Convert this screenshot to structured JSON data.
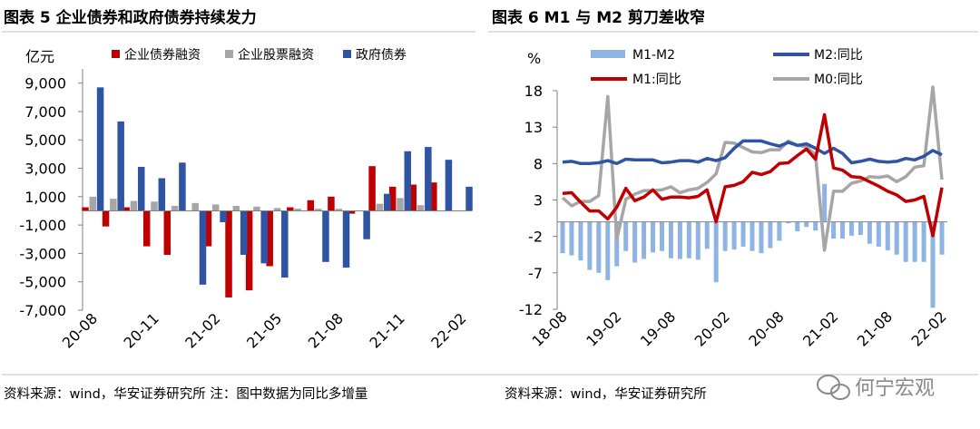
{
  "colors": {
    "red": "#c00000",
    "gray": "#a6a6a6",
    "blue": "#2f54a3",
    "lightblue": "#8eb4e3",
    "divider": "#bfbfbf",
    "watermark": "#8a8a8a"
  },
  "chart_data": [
    {
      "type": "bar",
      "title": "图表 5 企业债券和政府债券持续发力",
      "ylabel": "亿元",
      "ylim": [
        -7000,
        10000
      ],
      "yticks": [
        9000,
        7000,
        5000,
        3000,
        1000,
        -1000,
        -3000,
        -5000,
        -7000
      ],
      "ytick_labels": [
        "9,000",
        "7,000",
        "5,000",
        "3,000",
        "1,000",
        "-1,000",
        "-3,000",
        "-5,000",
        "-7,000"
      ],
      "categories": [
        "20-08",
        "20-09",
        "20-10",
        "20-11",
        "20-12",
        "21-01",
        "21-02",
        "21-03",
        "21-04",
        "21-05",
        "21-06",
        "21-07",
        "21-08",
        "21-09",
        "21-10",
        "21-11",
        "21-12",
        "22-01",
        "22-02"
      ],
      "xtick_labels": [
        "20-08",
        "20-11",
        "21-02",
        "21-05",
        "21-08",
        "21-11",
        "22-02"
      ],
      "series": [
        {
          "name": "企业债券融资",
          "color": "#c00000",
          "values": [
            250,
            -1100,
            250,
            -2500,
            -3100,
            0,
            -2500,
            -6100,
            -5600,
            -3900,
            250,
            750,
            1000,
            -200,
            3150,
            1700,
            1850,
            2000,
            0
          ]
        },
        {
          "name": "企业股票融资",
          "color": "#a6a6a6",
          "values": [
            1000,
            850,
            700,
            650,
            350,
            550,
            450,
            350,
            300,
            200,
            150,
            150,
            150,
            0,
            500,
            900,
            400,
            0,
            0
          ]
        },
        {
          "name": "政府债券",
          "color": "#2f54a3",
          "values": [
            8700,
            6300,
            3100,
            2300,
            3400,
            -5200,
            -800,
            -3100,
            -3700,
            -4700,
            0,
            -3600,
            -4000,
            -2000,
            1200,
            4200,
            4500,
            3600,
            1700
          ]
        }
      ]
    },
    {
      "type": "line",
      "title": "图表 6 M1 与 M2 剪刀差收窄",
      "ylabel": "%",
      "ylim": [
        -12,
        18
      ],
      "yticks": [
        18,
        13,
        8,
        3,
        -2,
        -7,
        -12
      ],
      "x": [
        "18-08",
        "18-09",
        "18-10",
        "18-11",
        "18-12",
        "19-01",
        "19-02",
        "19-03",
        "19-04",
        "19-05",
        "19-06",
        "19-07",
        "19-08",
        "19-09",
        "19-10",
        "19-11",
        "19-12",
        "20-01",
        "20-02",
        "20-03",
        "20-04",
        "20-05",
        "20-06",
        "20-07",
        "20-08",
        "20-09",
        "20-10",
        "20-11",
        "20-12",
        "21-01",
        "21-02",
        "21-03",
        "21-04",
        "21-05",
        "21-06",
        "21-07",
        "21-08",
        "21-09",
        "21-10",
        "21-11",
        "21-12",
        "22-01",
        "22-02"
      ],
      "xtick_labels": [
        "18-08",
        "19-02",
        "19-08",
        "20-02",
        "20-08",
        "21-02",
        "21-08",
        "22-02"
      ],
      "series": [
        {
          "name": "M1-M2",
          "type": "bar",
          "color": "#8eb4e3",
          "values": [
            -4.3,
            -4.6,
            -5.3,
            -6.6,
            -7.0,
            -8.0,
            -6.1,
            -4.0,
            -5.6,
            -5.1,
            -4.2,
            -4.0,
            -5.0,
            -5.1,
            -5.0,
            -5.2,
            -3.7,
            -8.3,
            -4.0,
            -3.8,
            -3.4,
            -4.0,
            -4.3,
            -3.6,
            -2.6,
            -0.2,
            -1.3,
            -0.7,
            -1.2,
            5.2,
            -2.3,
            -2.3,
            -1.9,
            -1.8,
            -3.0,
            -3.4,
            -3.9,
            -4.5,
            -5.5,
            -5.5,
            -5.5,
            -11.8,
            -4.5
          ]
        },
        {
          "name": "M2:同比",
          "type": "line",
          "color": "#2f54a3",
          "values": [
            8.2,
            8.3,
            8.0,
            8.0,
            8.1,
            8.4,
            8.0,
            8.6,
            8.5,
            8.5,
            8.5,
            8.1,
            8.2,
            8.4,
            8.4,
            8.2,
            8.7,
            8.4,
            8.8,
            10.1,
            11.1,
            11.1,
            11.1,
            10.7,
            10.4,
            10.9,
            10.5,
            10.7,
            10.1,
            9.4,
            10.1,
            9.4,
            8.1,
            8.3,
            8.6,
            8.3,
            8.2,
            8.3,
            8.7,
            8.5,
            9.0,
            9.8,
            9.2
          ]
        },
        {
          "name": "M1:同比",
          "type": "line",
          "color": "#c00000",
          "values": [
            3.9,
            4.0,
            2.7,
            1.5,
            1.5,
            0.4,
            2.0,
            4.6,
            2.9,
            3.4,
            4.4,
            3.1,
            3.4,
            3.4,
            3.3,
            3.5,
            4.4,
            0.0,
            4.8,
            5.0,
            5.5,
            6.8,
            6.5,
            6.9,
            8.0,
            8.1,
            9.1,
            10.0,
            8.6,
            14.7,
            7.4,
            7.1,
            6.2,
            6.1,
            5.5,
            4.9,
            4.2,
            3.7,
            2.8,
            3.0,
            3.5,
            -1.9,
            4.7
          ]
        },
        {
          "name": "M0:同比",
          "type": "line",
          "color": "#a6a6a6",
          "values": [
            3.3,
            2.2,
            2.8,
            2.8,
            3.6,
            17.2,
            -2.4,
            3.1,
            3.8,
            4.3,
            4.3,
            4.4,
            4.8,
            4.0,
            4.4,
            4.6,
            5.4,
            6.6,
            10.9,
            10.8,
            10.2,
            9.6,
            9.5,
            9.9,
            9.9,
            11.1,
            10.5,
            10.3,
            9.2,
            -3.9,
            4.2,
            4.2,
            5.3,
            5.6,
            6.2,
            6.1,
            6.3,
            5.5,
            6.2,
            7.5,
            7.7,
            18.5,
            5.8
          ]
        }
      ]
    }
  ],
  "footer": {
    "left_source": "资料来源：wind，华安证券研究所 注：图中数据为同比多增量",
    "right_source": "资料来源：wind，华安证券研究所"
  },
  "watermark": {
    "text": "何宁宏观"
  }
}
